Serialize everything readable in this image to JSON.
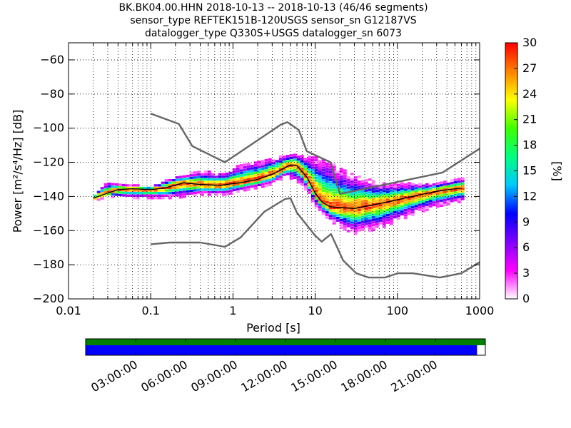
{
  "title": {
    "line1": "BK.BK04.00.HHN   2018-10-13 -- 2018-10-13  (46/46 segments)",
    "line2": "sensor_type REFTEK151B-120USGS sensor_sn G12187VS",
    "line3": "datalogger_type Q330S+USGS datalogger_sn 6073"
  },
  "chart_data": {
    "type": "heatmap",
    "xlabel": "Period [s]",
    "ylabel": "Power [m²/s⁴/Hz] [dB]",
    "xscale": "log",
    "xlim": [
      0.01,
      1000
    ],
    "ylim": [
      -200,
      -50
    ],
    "xticks": [
      0.01,
      0.1,
      1,
      10,
      100,
      1000
    ],
    "xtick_labels": [
      "0.01",
      "0.1",
      "1",
      "10",
      "100",
      "1000"
    ],
    "yticks": [
      -200,
      -180,
      -160,
      -140,
      -120,
      -100,
      -80,
      -60
    ],
    "grid": true,
    "colorbar": {
      "label": "[%]",
      "range": [
        0,
        30
      ],
      "ticks": [
        0,
        3,
        6,
        9,
        12,
        15,
        18,
        21,
        24,
        27,
        30
      ],
      "colormap": [
        "#ffffff",
        "#ff00ff",
        "#8000ff",
        "#0000ff",
        "#00c8ff",
        "#00ff80",
        "#40ff00",
        "#ffff00",
        "#ff8000",
        "#ff0000"
      ]
    },
    "series": [
      {
        "role": "high-noise-model",
        "color": "#666666",
        "points": [
          [
            0.1,
            -91.5
          ],
          [
            0.22,
            -97.5
          ],
          [
            0.32,
            -110.5
          ],
          [
            0.8,
            -120
          ],
          [
            3.8,
            -98
          ],
          [
            4.6,
            -96.5
          ],
          [
            6.3,
            -101
          ],
          [
            7.9,
            -113.5
          ],
          [
            15.4,
            -120
          ],
          [
            20,
            -138.5
          ],
          [
            354,
            -126
          ],
          [
            1000,
            -112
          ]
        ]
      },
      {
        "role": "low-noise-model",
        "color": "#666666",
        "points": [
          [
            0.1,
            -168
          ],
          [
            0.17,
            -167
          ],
          [
            0.4,
            -167
          ],
          [
            0.8,
            -169.5
          ],
          [
            1.24,
            -164
          ],
          [
            2.4,
            -149
          ],
          [
            4.3,
            -141.5
          ],
          [
            5.0,
            -141
          ],
          [
            6.0,
            -149.5
          ],
          [
            10.0,
            -163
          ],
          [
            12.0,
            -166.5
          ],
          [
            15.6,
            -162
          ],
          [
            21.9,
            -177.5
          ],
          [
            31.6,
            -185
          ],
          [
            45,
            -187.5
          ],
          [
            70,
            -187.5
          ],
          [
            101,
            -185
          ],
          [
            154,
            -185
          ],
          [
            328,
            -187.5
          ],
          [
            600,
            -185
          ],
          [
            1000,
            -178.5
          ]
        ]
      },
      {
        "role": "mode",
        "color": "#000000",
        "points": [
          [
            0.02,
            -141
          ],
          [
            0.03,
            -138
          ],
          [
            0.04,
            -136
          ],
          [
            0.06,
            -135.5
          ],
          [
            0.1,
            -136
          ],
          [
            0.15,
            -135
          ],
          [
            0.25,
            -132
          ],
          [
            0.4,
            -133
          ],
          [
            0.7,
            -133.5
          ],
          [
            1.2,
            -132
          ],
          [
            2.0,
            -130
          ],
          [
            3.0,
            -127
          ],
          [
            4.0,
            -124
          ],
          [
            5.0,
            -121.5
          ],
          [
            6.0,
            -122
          ],
          [
            8.0,
            -129
          ],
          [
            10.0,
            -138
          ],
          [
            12.0,
            -143
          ],
          [
            15.0,
            -146
          ],
          [
            20.0,
            -146.5
          ],
          [
            30.0,
            -147
          ],
          [
            50.0,
            -145
          ],
          [
            80.0,
            -143
          ],
          [
            150.0,
            -140
          ],
          [
            300.0,
            -137
          ],
          [
            600.0,
            -135
          ]
        ]
      }
    ],
    "distribution_extent": {
      "upper": [
        [
          0.02,
          -139
        ],
        [
          0.03,
          -131
        ],
        [
          0.05,
          -133
        ],
        [
          0.1,
          -134
        ],
        [
          0.2,
          -128
        ],
        [
          0.4,
          -125
        ],
        [
          0.8,
          -126
        ],
        [
          1.2,
          -121
        ],
        [
          2.0,
          -119
        ],
        [
          3.0,
          -117
        ],
        [
          4.5,
          -115
        ],
        [
          7.0,
          -115
        ],
        [
          10.0,
          -116
        ],
        [
          15.0,
          -118
        ],
        [
          20.0,
          -123
        ],
        [
          30.0,
          -127
        ],
        [
          60.0,
          -132
        ],
        [
          150.0,
          -132
        ],
        [
          300.0,
          -132
        ],
        [
          600.0,
          -129
        ]
      ],
      "lower": [
        [
          0.02,
          -143
        ],
        [
          0.03,
          -140
        ],
        [
          0.05,
          -141
        ],
        [
          0.1,
          -141
        ],
        [
          0.2,
          -141
        ],
        [
          0.4,
          -139
        ],
        [
          0.8,
          -139
        ],
        [
          1.2,
          -137
        ],
        [
          2.0,
          -135
        ],
        [
          3.0,
          -133
        ],
        [
          4.5,
          -128
        ],
        [
          7.0,
          -133
        ],
        [
          10.0,
          -145
        ],
        [
          15.0,
          -154
        ],
        [
          20.0,
          -158
        ],
        [
          30.0,
          -162
        ],
        [
          60.0,
          -159
        ],
        [
          150.0,
          -151
        ],
        [
          300.0,
          -146
        ],
        [
          600.0,
          -143
        ]
      ]
    },
    "time_axis": {
      "tick_labels": [
        "03:00:00",
        "06:00:00",
        "09:00:00",
        "12:00:00",
        "15:00:00",
        "18:00:00",
        "21:00:00"
      ],
      "range_hours": [
        0,
        24
      ],
      "data_coverage_hours": [
        0,
        24
      ],
      "psd_coverage_hours": [
        0,
        23.5
      ],
      "data_color": "#007f00",
      "psd_color": "#0000ff"
    }
  }
}
